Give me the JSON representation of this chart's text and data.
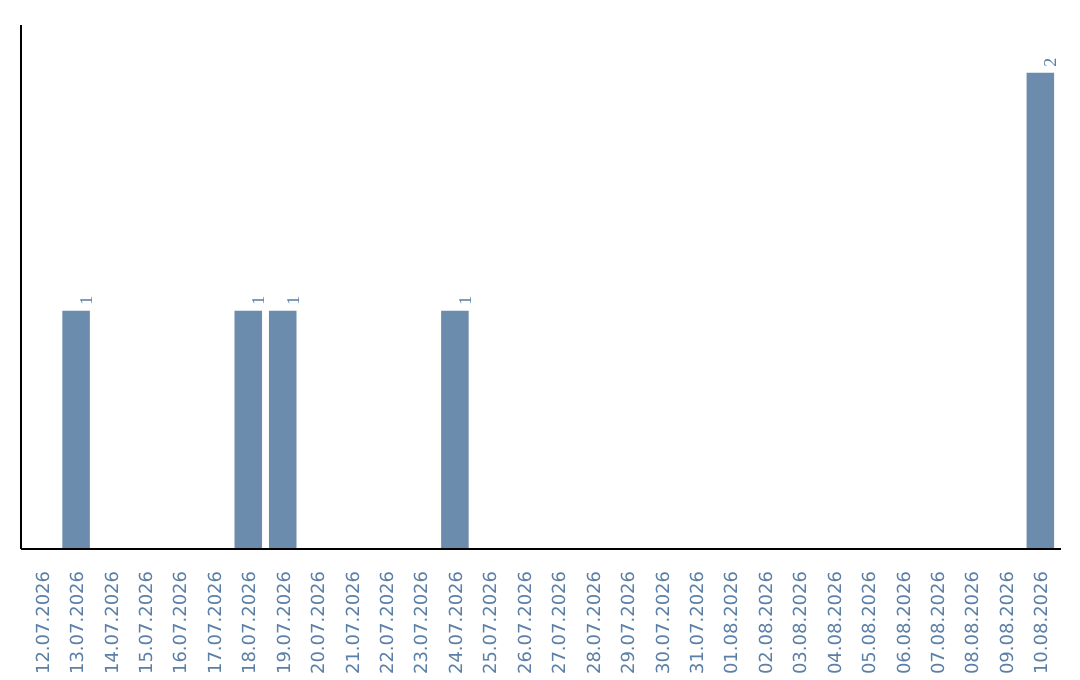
{
  "chart_data": {
    "type": "bar",
    "categories": [
      "12.07.2026",
      "13.07.2026",
      "14.07.2026",
      "15.07.2026",
      "16.07.2026",
      "17.07.2026",
      "18.07.2026",
      "19.07.2026",
      "20.07.2026",
      "21.07.2026",
      "22.07.2026",
      "23.07.2026",
      "24.07.2026",
      "25.07.2026",
      "26.07.2026",
      "27.07.2026",
      "28.07.2026",
      "29.07.2026",
      "30.07.2026",
      "31.07.2026",
      "01.08.2026",
      "02.08.2026",
      "03.08.2026",
      "04.08.2026",
      "05.08.2026",
      "06.08.2026",
      "07.08.2026",
      "08.08.2026",
      "09.08.2026",
      "10.08.2026"
    ],
    "values": [
      0,
      1,
      0,
      0,
      0,
      0,
      1,
      1,
      0,
      0,
      0,
      0,
      1,
      0,
      0,
      0,
      0,
      0,
      0,
      0,
      0,
      0,
      0,
      0,
      0,
      0,
      0,
      0,
      0,
      2
    ],
    "value_labels": [
      null,
      "1",
      null,
      null,
      null,
      null,
      "1",
      "1",
      null,
      null,
      null,
      null,
      "1",
      null,
      null,
      null,
      null,
      null,
      null,
      null,
      null,
      null,
      null,
      null,
      null,
      null,
      null,
      null,
      null,
      "2"
    ],
    "color": "#6b8cad",
    "tick_labels": "x"
  }
}
